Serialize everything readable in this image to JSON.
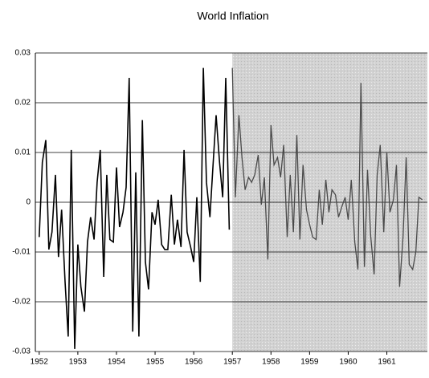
{
  "chart_data": {
    "type": "line",
    "title": "World Inflation",
    "xlim": [
      1951.9,
      1962.05
    ],
    "xticks": [
      1952,
      1953,
      1954,
      1955,
      1956,
      1957,
      1958,
      1959,
      1960,
      1961
    ],
    "ylim": [
      -0.03,
      0.03
    ],
    "yticks": [
      0.03,
      0.02,
      0.01,
      0,
      -0.01,
      -0.02,
      -0.03
    ],
    "grid": true,
    "shaded_xlim": [
      1957,
      1962.05
    ],
    "shade_color": "#d2d2d2",
    "series": [
      {
        "color": "#000000",
        "x": [
          1952.0,
          1952.08,
          1952.17,
          1952.25,
          1952.33,
          1952.42,
          1952.5,
          1952.58,
          1952.67,
          1952.75,
          1952.83,
          1952.92,
          1953.0,
          1953.08,
          1953.17,
          1953.25,
          1953.33,
          1953.42,
          1953.5,
          1953.58,
          1953.67,
          1953.75,
          1953.83,
          1953.92,
          1954.0,
          1954.08,
          1954.17,
          1954.25,
          1954.33,
          1954.42,
          1954.5,
          1954.58,
          1954.67,
          1954.75,
          1954.83,
          1954.92,
          1955.0,
          1955.08,
          1955.17,
          1955.25,
          1955.33,
          1955.42,
          1955.5,
          1955.58,
          1955.67,
          1955.75,
          1955.83,
          1955.92,
          1956.0,
          1956.08,
          1956.17,
          1956.25,
          1956.33,
          1956.42,
          1956.5,
          1956.58,
          1956.67,
          1956.75,
          1956.83,
          1956.92
        ],
        "values": [
          -0.007,
          0.008,
          0.0125,
          -0.0095,
          -0.006,
          0.0055,
          -0.011,
          -0.0015,
          -0.016,
          -0.027,
          0.0105,
          -0.0295,
          -0.0085,
          -0.017,
          -0.022,
          -0.008,
          -0.003,
          -0.0075,
          0.004,
          0.0105,
          -0.015,
          0.0055,
          -0.0075,
          -0.008,
          0.007,
          -0.005,
          -0.002,
          0.003,
          0.025,
          -0.026,
          0.006,
          -0.027,
          0.0165,
          -0.012,
          -0.0175,
          -0.002,
          -0.0045,
          0.0005,
          -0.0085,
          -0.0095,
          -0.0095,
          0.0015,
          -0.0085,
          -0.0035,
          -0.009,
          0.0105,
          -0.006,
          -0.009,
          -0.012,
          0.001,
          -0.016,
          0.027,
          0.004,
          -0.003,
          0.0075,
          0.0175,
          0.008,
          0.001,
          0.025,
          -0.0055
        ]
      },
      {
        "color": "#4a4a4a",
        "x": [
          1957.0,
          1957.08,
          1957.17,
          1957.25,
          1957.33,
          1957.42,
          1957.5,
          1957.58,
          1957.67,
          1957.75,
          1957.83,
          1957.92,
          1958.0,
          1958.08,
          1958.17,
          1958.25,
          1958.33,
          1958.42,
          1958.5,
          1958.58,
          1958.67,
          1958.75,
          1958.83,
          1958.92,
          1959.0,
          1959.08,
          1959.17,
          1959.25,
          1959.33,
          1959.42,
          1959.5,
          1959.58,
          1959.67,
          1959.75,
          1959.83,
          1959.92,
          1960.0,
          1960.08,
          1960.17,
          1960.25,
          1960.33,
          1960.42,
          1960.5,
          1960.58,
          1960.67,
          1960.75,
          1960.83,
          1960.92,
          1961.0,
          1961.08,
          1961.17,
          1961.25,
          1961.33,
          1961.42,
          1961.5,
          1961.58,
          1961.67,
          1961.75,
          1961.83,
          1961.92
        ],
        "values": [
          0.027,
          0.001,
          0.0175,
          0.009,
          0.0025,
          0.005,
          0.004,
          0.0055,
          0.0095,
          -0.0005,
          0.005,
          -0.0115,
          0.0155,
          0.0075,
          0.009,
          0.005,
          0.0115,
          -0.007,
          0.0055,
          -0.006,
          0.0135,
          -0.0075,
          0.0075,
          -0.0015,
          -0.0045,
          -0.007,
          -0.0075,
          0.0025,
          -0.0045,
          0.0045,
          -0.002,
          0.0025,
          0.0015,
          -0.003,
          -0.001,
          0.001,
          -0.0035,
          0.0045,
          -0.008,
          -0.0135,
          0.024,
          -0.013,
          0.0065,
          -0.0065,
          -0.0145,
          0.0055,
          0.0115,
          -0.006,
          0.01,
          -0.002,
          0.0005,
          0.0075,
          -0.017,
          -0.007,
          0.009,
          -0.0125,
          -0.0135,
          -0.01,
          0.001,
          0.0005
        ]
      }
    ]
  }
}
